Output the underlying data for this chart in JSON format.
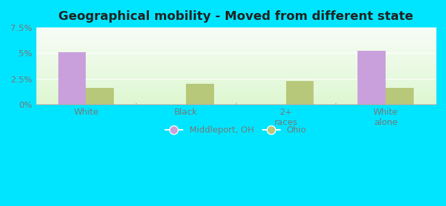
{
  "title": "Geographical mobility - Moved from different state",
  "categories": [
    "White",
    "Black",
    "2+\nraces",
    "White\nalone"
  ],
  "middleport_values": [
    5.1,
    0,
    0,
    5.2
  ],
  "ohio_values": [
    1.6,
    2.0,
    2.3,
    1.6
  ],
  "middleport_color": "#c9a0dc",
  "ohio_color": "#b8c87a",
  "outer_background": "#00e5ff",
  "ylim": [
    0,
    7.5
  ],
  "yticks": [
    0,
    2.5,
    5.0,
    7.5
  ],
  "ytick_labels": [
    "0%",
    "2.5%",
    "5%",
    "7.5%"
  ],
  "bar_width": 0.28,
  "legend_labels": [
    "Middleport, OH",
    "Ohio"
  ],
  "title_fontsize": 13,
  "tick_fontsize": 9,
  "legend_fontsize": 9
}
